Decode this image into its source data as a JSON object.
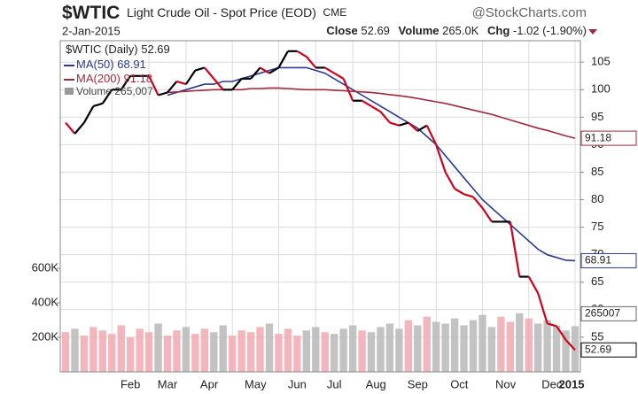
{
  "chart_data": {
    "type": "stock",
    "symbol": "$WTIC",
    "title": "Light Crude Oil - Spot Price (EOD)",
    "exchange": "CME",
    "source": "@StockCharts.com",
    "date": "2-Jan-2015",
    "header": {
      "close_label": "Close",
      "volume_label": "Volume",
      "volume_value": "265.0K",
      "change_label": "Chg",
      "change_value": "-1.02 (-1.90%)"
    },
    "xlim": [
      0,
      55
    ],
    "xticks": [
      {
        "value": 5,
        "label": "Feb"
      },
      {
        "value": 9,
        "label": "Mar"
      },
      {
        "value": 13,
        "label": "Apr"
      },
      {
        "value": 18,
        "label": "May"
      },
      {
        "value": 23,
        "label": "Jun"
      },
      {
        "value": 27,
        "label": "Jul"
      },
      {
        "value": 31,
        "label": "Aug"
      },
      {
        "value": 36,
        "label": "Sep"
      },
      {
        "value": 40,
        "label": "Oct"
      },
      {
        "value": 45,
        "label": "Nov"
      },
      {
        "value": 50,
        "label": "Dec"
      },
      {
        "value": 55,
        "label": "2015"
      }
    ],
    "ylim": [
      48.7,
      108.9
    ],
    "yticks": [
      55,
      60,
      65,
      70,
      75,
      80,
      85,
      90,
      95,
      100,
      105
    ],
    "grid": true,
    "series": [
      {
        "name": "$WTIC (Daily)",
        "color": "#000000",
        "down_color": "#d0021b",
        "values": [
          94,
          92,
          94,
          97,
          97.5,
          100,
          100,
          102.5,
          102.5,
          102.5,
          99,
          99.5,
          101.5,
          101,
          103.5,
          104,
          102,
          100,
          100,
          102,
          102,
          104,
          103,
          104,
          107,
          107,
          106,
          104,
          104,
          103,
          102,
          98,
          98,
          97,
          96,
          94,
          93.5,
          94,
          92.5,
          93.5,
          90,
          85,
          82,
          81,
          80.5,
          78.5,
          76,
          76,
          76,
          66,
          66,
          63,
          57.5,
          57,
          54.5,
          52.69
        ]
      },
      {
        "name": "MA(50)",
        "color": "#2b3a8f",
        "values": [
          null,
          null,
          null,
          null,
          null,
          null,
          null,
          null,
          null,
          null,
          null,
          99,
          99.5,
          100,
          100.5,
          101,
          101,
          101.5,
          101.5,
          102,
          102.5,
          103,
          103.5,
          104,
          104,
          104,
          104,
          103.5,
          103,
          102,
          101,
          100,
          99,
          98,
          97,
          96,
          95,
          94,
          93,
          91.5,
          90,
          88,
          86,
          84,
          82,
          80,
          78.5,
          77,
          75.5,
          74,
          72.5,
          71,
          70,
          69.5,
          69,
          68.91
        ]
      },
      {
        "name": "MA(200)",
        "color": "#9e2a3c",
        "values": [
          null,
          null,
          null,
          null,
          null,
          null,
          null,
          null,
          null,
          null,
          null,
          99.5,
          99.6,
          99.7,
          99.8,
          99.9,
          100,
          100,
          100,
          100,
          100.2,
          100.2,
          100.3,
          100.3,
          100.2,
          100.1,
          100,
          100,
          100,
          99.9,
          99.8,
          99.7,
          99.6,
          99.5,
          99.3,
          99.1,
          98.9,
          98.7,
          98.4,
          98.1,
          97.8,
          97.5,
          97.1,
          96.7,
          96.3,
          95.9,
          95.5,
          95,
          94.5,
          94,
          93.5,
          93,
          92.6,
          92.1,
          91.6,
          91.18
        ]
      }
    ],
    "volume": {
      "name": "Volume",
      "legend_value_label": "265,007",
      "up_color": "#f2a9b1",
      "down_color": "#b8b8b8",
      "ylim": [
        0,
        1920000
      ],
      "yticks": [
        {
          "value": 200000,
          "label": "200K"
        },
        {
          "value": 400000,
          "label": "400K"
        },
        {
          "value": 600000,
          "label": "600K"
        }
      ],
      "values": [
        230000,
        250000,
        210000,
        260000,
        240000,
        220000,
        270000,
        200000,
        250000,
        230000,
        280000,
        210000,
        240000,
        260000,
        220000,
        250000,
        230000,
        270000,
        210000,
        240000,
        230000,
        260000,
        280000,
        220000,
        250000,
        210000,
        240000,
        260000,
        230000,
        220000,
        250000,
        270000,
        240000,
        230000,
        260000,
        280000,
        250000,
        300000,
        270000,
        320000,
        290000,
        280000,
        310000,
        270000,
        300000,
        330000,
        260000,
        320000,
        290000,
        340000,
        310000,
        280000,
        300000,
        270000,
        240000,
        265007
      ]
    }
  }
}
